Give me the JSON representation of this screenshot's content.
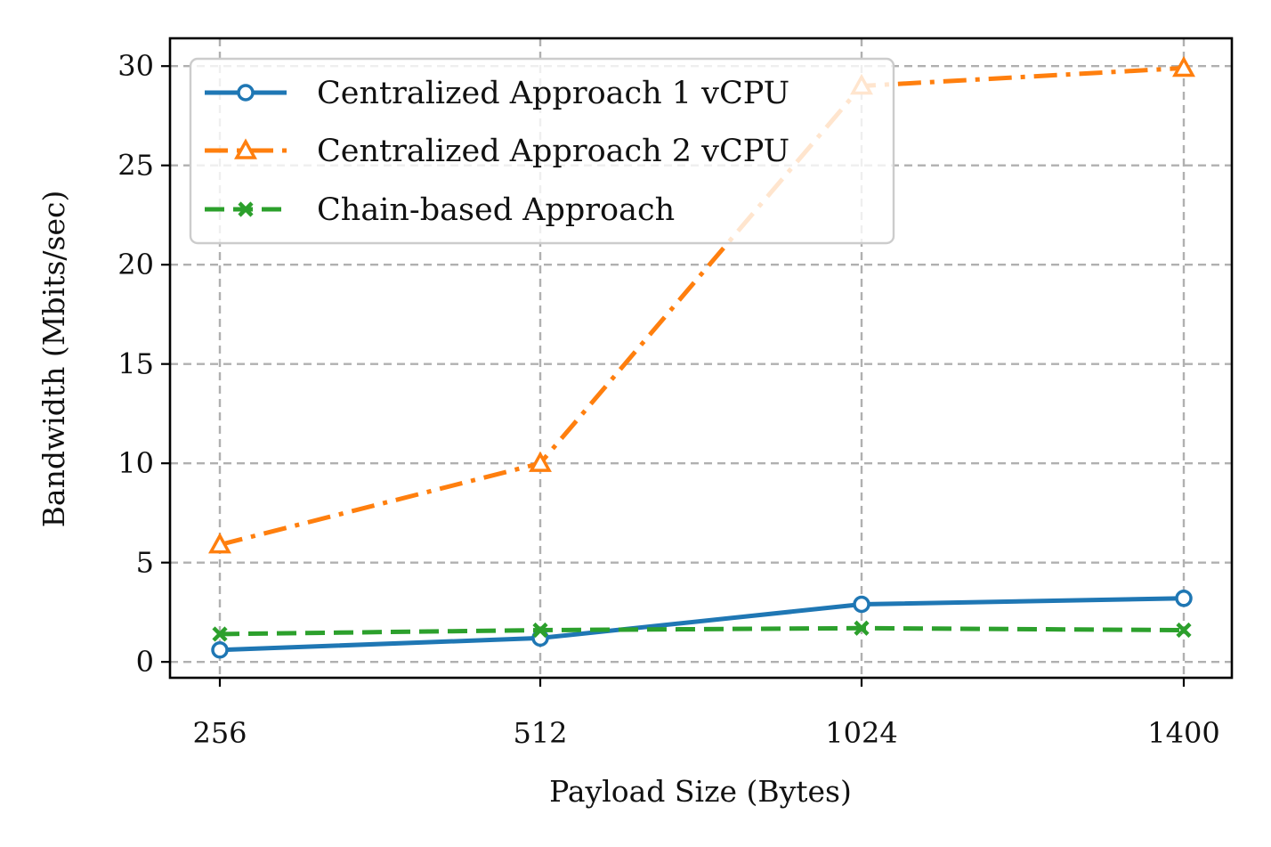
{
  "chart_data": {
    "type": "line",
    "xlabel": "Payload Size (Bytes)",
    "ylabel": "Bandwidth (Mbits/sec)",
    "categories": [
      "256",
      "512",
      "1024",
      "1400"
    ],
    "ylim": [
      -0.8,
      31.4
    ],
    "yticks": [
      0,
      5,
      10,
      15,
      20,
      25,
      30
    ],
    "grid": true,
    "legend_position": "top-left",
    "series": [
      {
        "name": "Centralized Approach 1 vCPU",
        "values": [
          0.6,
          1.2,
          2.9,
          3.2
        ],
        "color": "#1f77b4",
        "line_style": "solid",
        "marker": "circle"
      },
      {
        "name": "Centralized Approach 2 vCPU",
        "values": [
          5.9,
          10.0,
          29.0,
          29.9
        ],
        "color": "#ff7f0e",
        "line_style": "dashdot",
        "marker": "triangle"
      },
      {
        "name": "Chain-based Approach",
        "values": [
          1.4,
          1.6,
          1.7,
          1.6
        ],
        "color": "#2ca02c",
        "line_style": "dashed",
        "marker": "x"
      }
    ]
  }
}
